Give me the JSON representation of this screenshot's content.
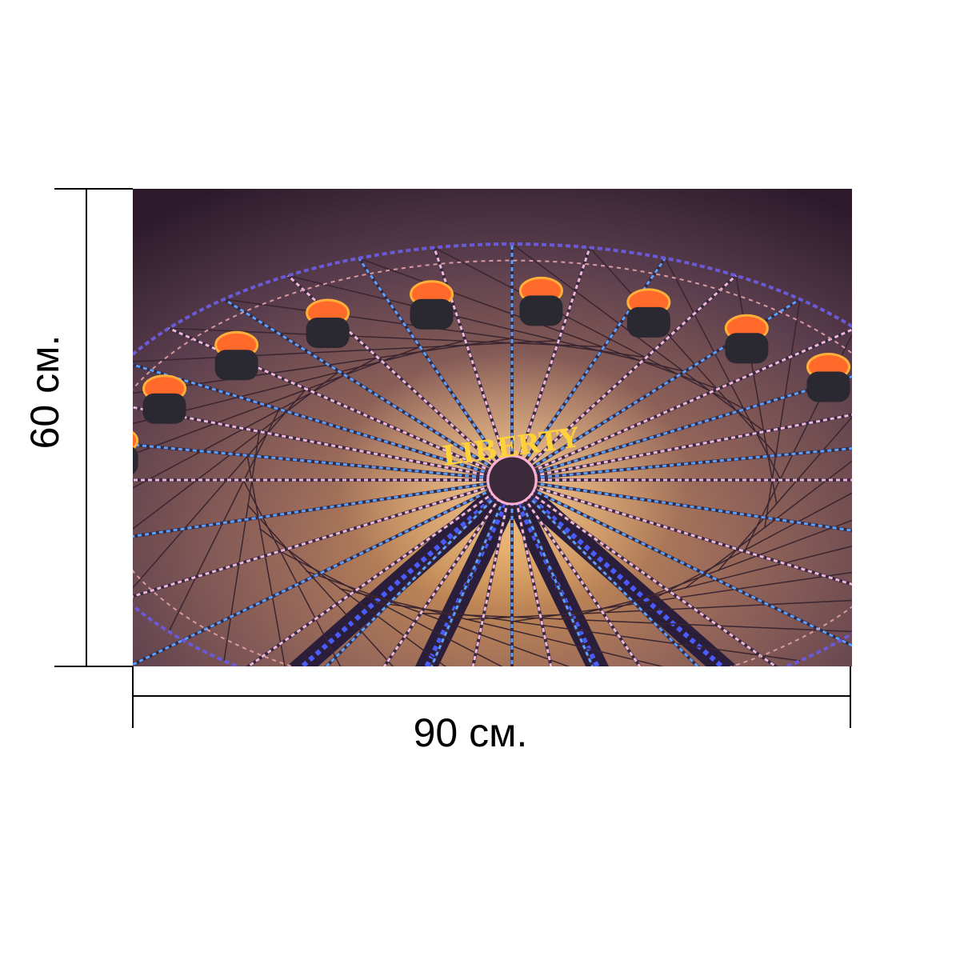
{
  "dimensions": {
    "height": "60 см.",
    "width": "90 см."
  },
  "photo": {
    "sign": "LIBERTY"
  }
}
